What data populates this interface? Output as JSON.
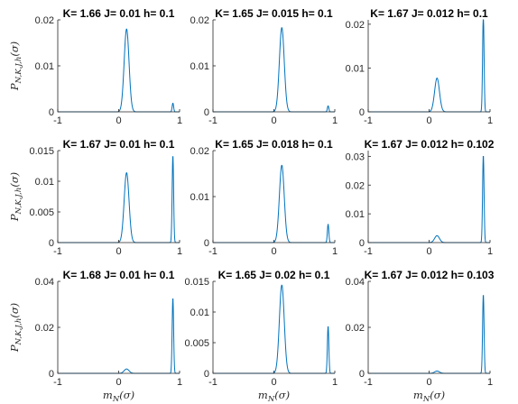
{
  "chart_data": [
    {
      "type": "line",
      "title": "K= 1.66 J= 0.01 h= 0.1",
      "ylabel": "P_{N,K,J,h}(σ)",
      "xlabel": "",
      "xlim": [
        -1,
        1
      ],
      "ylim": [
        0,
        0.02
      ],
      "xticks": [
        -1,
        0,
        1
      ],
      "yticks": [
        0,
        0.01,
        0.02
      ],
      "ytick_labels": [
        "0",
        "0.01",
        "0.02"
      ],
      "series": [
        {
          "color": "#0072BD",
          "peaks": [
            {
              "x": 0.13,
              "height": 0.018,
              "width": 0.04
            },
            {
              "x": 0.89,
              "height": 0.0019,
              "width": 0.012
            }
          ]
        }
      ]
    },
    {
      "type": "line",
      "title": "K= 1.65 J= 0.015 h= 0.1",
      "ylabel": "",
      "xlabel": "",
      "xlim": [
        -1,
        1
      ],
      "ylim": [
        0,
        0.02
      ],
      "xticks": [
        -1,
        0,
        1
      ],
      "yticks": [
        0,
        0.01,
        0.02
      ],
      "ytick_labels": [
        "0",
        "0.01",
        "0.02"
      ],
      "series": [
        {
          "color": "#0072BD",
          "peaks": [
            {
              "x": 0.13,
              "height": 0.0183,
              "width": 0.04
            },
            {
              "x": 0.89,
              "height": 0.0013,
              "width": 0.012
            }
          ]
        }
      ]
    },
    {
      "type": "line",
      "title": "K= 1.67 J= 0.012 h= 0.1",
      "ylabel": "",
      "xlabel": "",
      "xlim": [
        -1,
        1
      ],
      "ylim": [
        0,
        0.021
      ],
      "xticks": [
        -1,
        0,
        1
      ],
      "yticks": [
        0,
        0.01,
        0.02
      ],
      "ytick_labels": [
        "0",
        "0.01",
        "0.02"
      ],
      "series": [
        {
          "color": "#0072BD",
          "peaks": [
            {
              "x": 0.13,
              "height": 0.0077,
              "width": 0.04
            },
            {
              "x": 0.89,
              "height": 0.0222,
              "width": 0.012
            }
          ]
        }
      ]
    },
    {
      "type": "line",
      "title": "K= 1.67 J= 0.01 h= 0.1",
      "ylabel": "P_{N,K,J,h}(σ)",
      "xlabel": "",
      "xlim": [
        -1,
        1
      ],
      "ylim": [
        0,
        0.015
      ],
      "xticks": [
        -1,
        0,
        1
      ],
      "yticks": [
        0,
        0.005,
        0.01,
        0.015
      ],
      "ytick_labels": [
        "0",
        "0.005",
        "0.01",
        "0.015"
      ],
      "series": [
        {
          "color": "#0072BD",
          "peaks": [
            {
              "x": 0.13,
              "height": 0.0114,
              "width": 0.04
            },
            {
              "x": 0.89,
              "height": 0.0142,
              "width": 0.012
            }
          ]
        }
      ]
    },
    {
      "type": "line",
      "title": "K= 1.65 J= 0.018 h= 0.1",
      "ylabel": "",
      "xlabel": "",
      "xlim": [
        -1,
        1
      ],
      "ylim": [
        0,
        0.02
      ],
      "xticks": [
        -1,
        0,
        1
      ],
      "yticks": [
        0,
        0.01,
        0.02
      ],
      "ytick_labels": [
        "0",
        "0.01",
        "0.02"
      ],
      "series": [
        {
          "color": "#0072BD",
          "peaks": [
            {
              "x": 0.13,
              "height": 0.0168,
              "width": 0.04
            },
            {
              "x": 0.89,
              "height": 0.004,
              "width": 0.012
            }
          ]
        }
      ]
    },
    {
      "type": "line",
      "title": "K= 1.67 J= 0.012 h= 0.102",
      "ylabel": "",
      "xlabel": "",
      "xlim": [
        -1,
        1
      ],
      "ylim": [
        0,
        0.032
      ],
      "xticks": [
        -1,
        0,
        1
      ],
      "yticks": [
        0,
        0.01,
        0.02,
        0.03
      ],
      "ytick_labels": [
        "0",
        "0.01",
        "0.02",
        "0.03"
      ],
      "series": [
        {
          "color": "#0072BD",
          "peaks": [
            {
              "x": 0.13,
              "height": 0.0024,
              "width": 0.04
            },
            {
              "x": 0.89,
              "height": 0.0304,
              "width": 0.012
            }
          ]
        }
      ]
    },
    {
      "type": "line",
      "title": "K= 1.68 J= 0.01 h= 0.1",
      "ylabel": "P_{N,K,J,h}(σ)",
      "xlabel": "m_N(σ)",
      "xlim": [
        -1,
        1
      ],
      "ylim": [
        0,
        0.04
      ],
      "xticks": [
        -1,
        0,
        1
      ],
      "yticks": [
        0,
        0.02,
        0.04
      ],
      "ytick_labels": [
        "0",
        "0.02",
        "0.04"
      ],
      "series": [
        {
          "color": "#0072BD",
          "peaks": [
            {
              "x": 0.13,
              "height": 0.0019,
              "width": 0.04
            },
            {
              "x": 0.89,
              "height": 0.0328,
              "width": 0.012
            }
          ]
        }
      ]
    },
    {
      "type": "line",
      "title": "K= 1.65 J= 0.02 h= 0.1",
      "ylabel": "",
      "xlabel": "m_N(σ)",
      "xlim": [
        -1,
        1
      ],
      "ylim": [
        0,
        0.015
      ],
      "xticks": [
        -1,
        0,
        1
      ],
      "yticks": [
        0,
        0.005,
        0.01,
        0.015
      ],
      "ytick_labels": [
        "0",
        "0.005",
        "0.01",
        "0.015"
      ],
      "series": [
        {
          "color": "#0072BD",
          "peaks": [
            {
              "x": 0.13,
              "height": 0.0144,
              "width": 0.04
            },
            {
              "x": 0.89,
              "height": 0.0077,
              "width": 0.012
            }
          ]
        }
      ]
    },
    {
      "type": "line",
      "title": "K= 1.67 J= 0.012 h= 0.103",
      "ylabel": "",
      "xlabel": "m_N(σ)",
      "xlim": [
        -1,
        1
      ],
      "ylim": [
        0,
        0.04
      ],
      "xticks": [
        -1,
        0,
        1
      ],
      "yticks": [
        0,
        0.02,
        0.04
      ],
      "ytick_labels": [
        "0",
        "0.02",
        "0.04"
      ],
      "series": [
        {
          "color": "#0072BD",
          "peaks": [
            {
              "x": 0.13,
              "height": 0.001,
              "width": 0.04
            },
            {
              "x": 0.89,
              "height": 0.0343,
              "width": 0.012
            }
          ]
        }
      ]
    }
  ]
}
